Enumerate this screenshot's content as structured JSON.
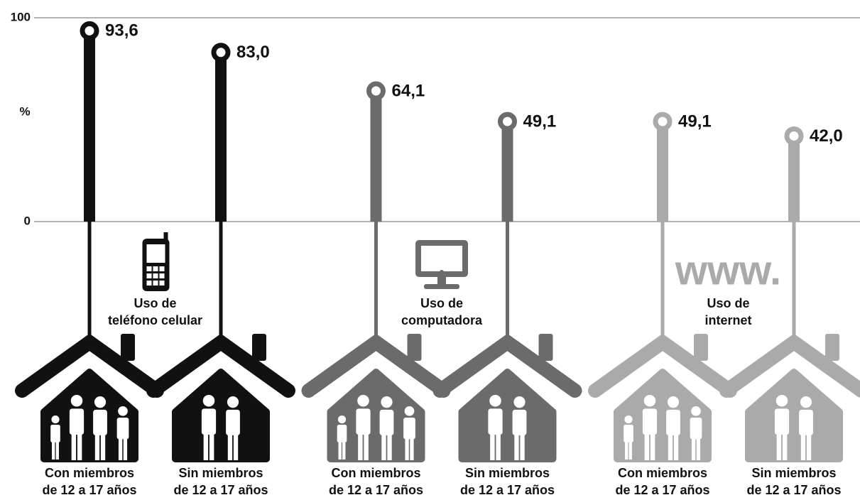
{
  "chart_data": {
    "type": "lollipop",
    "ylabel": "%",
    "ylim": [
      0,
      100
    ],
    "yticks": [
      0,
      100
    ],
    "categories": [
      [
        "Con miembros",
        "de 12 a 17 años"
      ],
      [
        "Sin miembros",
        "de 12 a 17 años"
      ]
    ],
    "series": [
      {
        "name": [
          "Uso de",
          "teléfono celular"
        ],
        "color": "#111111",
        "icon": "phone",
        "values": [
          93.6,
          83.0
        ],
        "value_labels": [
          "93,6",
          "83,0"
        ]
      },
      {
        "name": [
          "Uso de",
          "computadora"
        ],
        "color": "#6b6b6b",
        "icon": "monitor",
        "values": [
          64.1,
          49.1
        ],
        "value_labels": [
          "64,1",
          "49,1"
        ]
      },
      {
        "name": [
          "Uso de",
          "internet"
        ],
        "color": "#aaaaaa",
        "icon": "www",
        "icon_label": "www.",
        "values": [
          49.1,
          42.0
        ],
        "value_labels": [
          "49,1",
          "42,0"
        ]
      }
    ]
  }
}
